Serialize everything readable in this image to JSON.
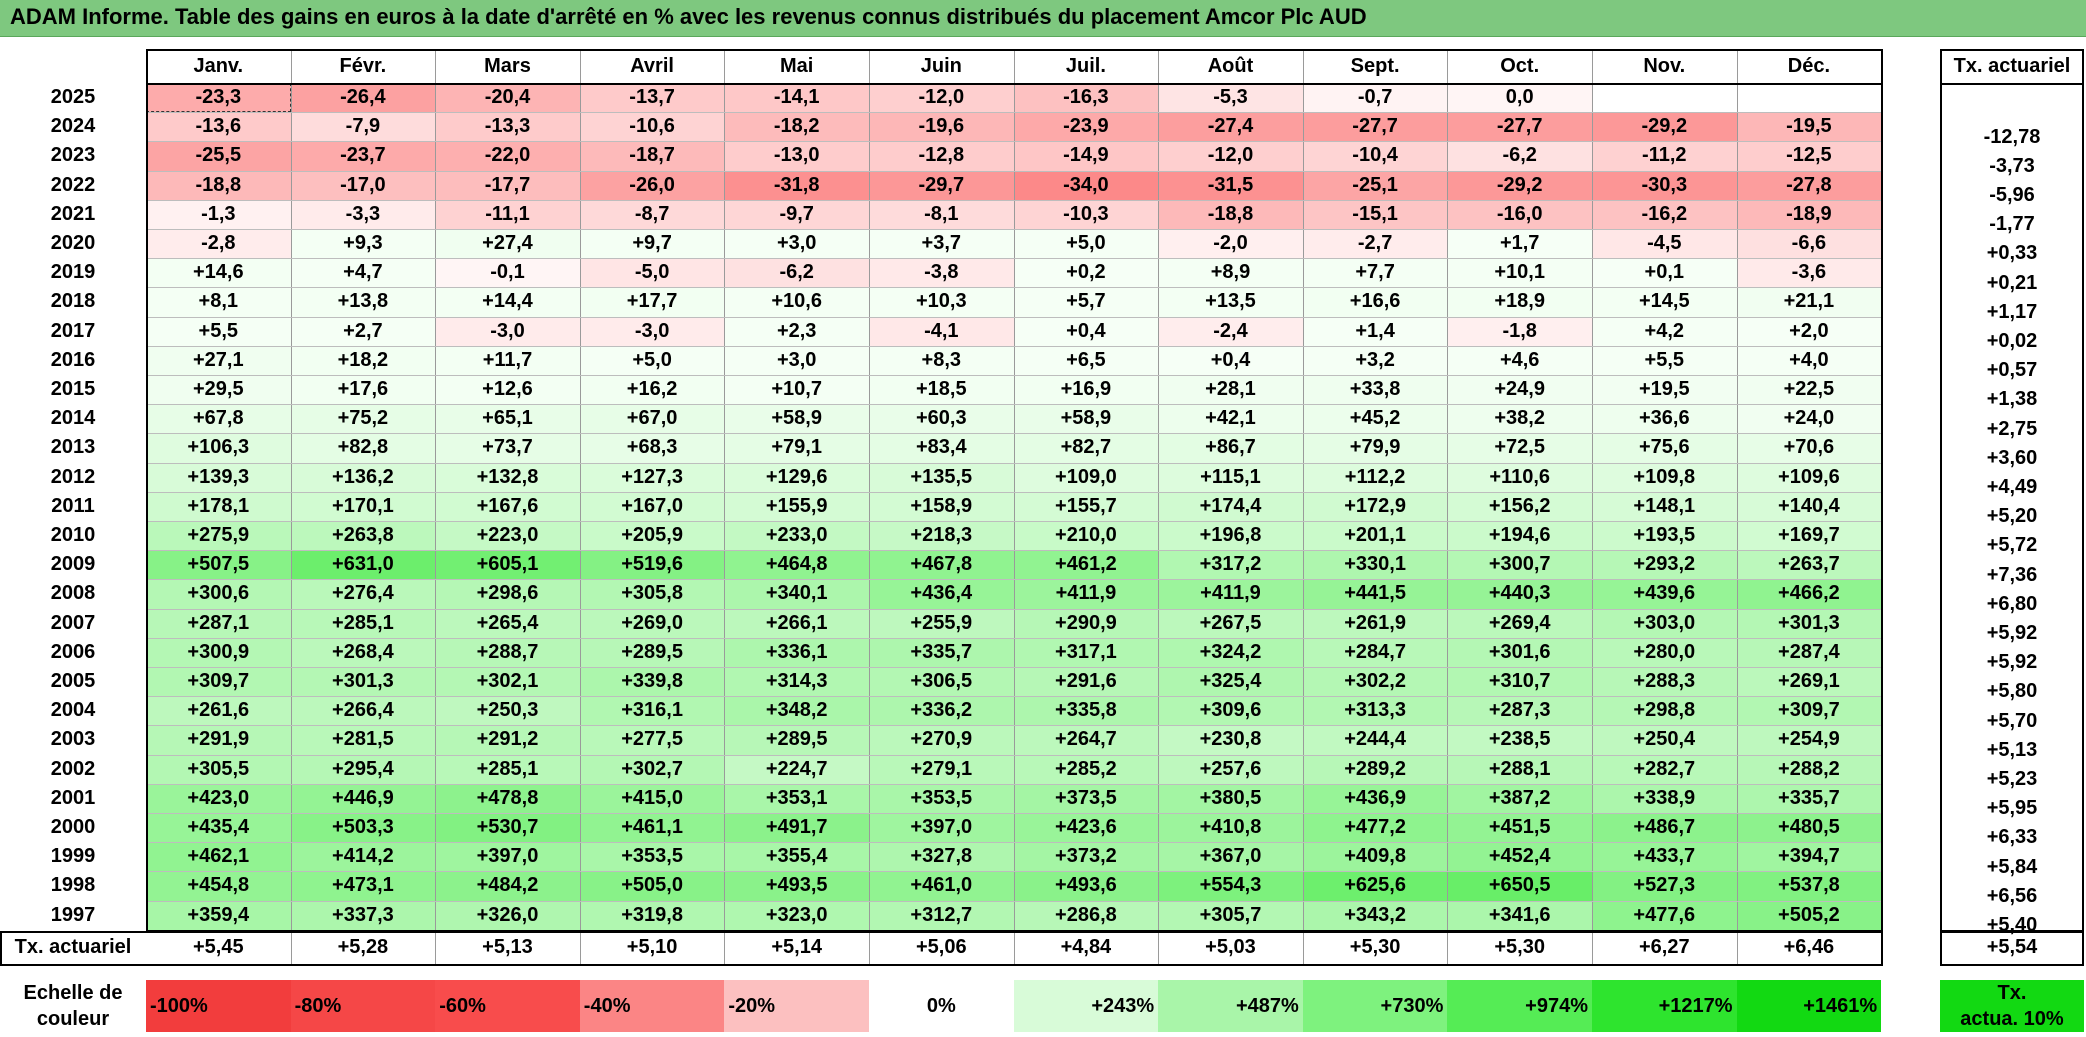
{
  "title": "ADAM Informe. Table des gains en euros à la date d'arrêté en % avec les revenus connus distribués du placement Amcor Plc AUD",
  "months": [
    "Janv.",
    "Févr.",
    "Mars",
    "Avril",
    "Mai",
    "Juin",
    "Juil.",
    "Août",
    "Sept.",
    "Oct.",
    "Nov.",
    "Déc."
  ],
  "tx_header": "Tx. actuariel",
  "footer_label": "Tx. actuariel",
  "chart_data": {
    "type": "heatmap",
    "title": "ADAM Informe. Table des gains en euros à la date d'arrêté en % avec les revenus connus distribués du placement Amcor Plc AUD",
    "columns": [
      "Janv.",
      "Févr.",
      "Mars",
      "Avril",
      "Mai",
      "Juin",
      "Juil.",
      "Août",
      "Sept.",
      "Oct.",
      "Nov.",
      "Déc."
    ],
    "rows": [
      {
        "year": "2025",
        "values": [
          "-23,3",
          "-26,4",
          "-20,4",
          "-13,7",
          "-14,1",
          "-12,0",
          "-16,3",
          "-5,3",
          "-0,7",
          "0,0",
          "",
          ""
        ],
        "tx": ""
      },
      {
        "year": "2024",
        "values": [
          "-13,6",
          "-7,9",
          "-13,3",
          "-10,6",
          "-18,2",
          "-19,6",
          "-23,9",
          "-27,4",
          "-27,7",
          "-27,7",
          "-29,2",
          "-19,5"
        ],
        "tx": "-12,78"
      },
      {
        "year": "2023",
        "values": [
          "-25,5",
          "-23,7",
          "-22,0",
          "-18,7",
          "-13,0",
          "-12,8",
          "-14,9",
          "-12,0",
          "-10,4",
          "-6,2",
          "-11,2",
          "-12,5"
        ],
        "tx": "-3,73"
      },
      {
        "year": "2022",
        "values": [
          "-18,8",
          "-17,0",
          "-17,7",
          "-26,0",
          "-31,8",
          "-29,7",
          "-34,0",
          "-31,5",
          "-25,1",
          "-29,2",
          "-30,3",
          "-27,8"
        ],
        "tx": "-5,96"
      },
      {
        "year": "2021",
        "values": [
          "-1,3",
          "-3,3",
          "-11,1",
          "-8,7",
          "-9,7",
          "-8,1",
          "-10,3",
          "-18,8",
          "-15,1",
          "-16,0",
          "-16,2",
          "-18,9"
        ],
        "tx": "-1,77"
      },
      {
        "year": "2020",
        "values": [
          "-2,8",
          "+9,3",
          "+27,4",
          "+9,7",
          "+3,0",
          "+3,7",
          "+5,0",
          "-2,0",
          "-2,7",
          "+1,7",
          "-4,5",
          "-6,6"
        ],
        "tx": "+0,33"
      },
      {
        "year": "2019",
        "values": [
          "+14,6",
          "+4,7",
          "-0,1",
          "-5,0",
          "-6,2",
          "-3,8",
          "+0,2",
          "+8,9",
          "+7,7",
          "+10,1",
          "+0,1",
          "-3,6"
        ],
        "tx": "+0,21"
      },
      {
        "year": "2018",
        "values": [
          "+8,1",
          "+13,8",
          "+14,4",
          "+17,7",
          "+10,6",
          "+10,3",
          "+5,7",
          "+13,5",
          "+16,6",
          "+18,9",
          "+14,5",
          "+21,1"
        ],
        "tx": "+1,17"
      },
      {
        "year": "2017",
        "values": [
          "+5,5",
          "+2,7",
          "-3,0",
          "-3,0",
          "+2,3",
          "-4,1",
          "+0,4",
          "-2,4",
          "+1,4",
          "-1,8",
          "+4,2",
          "+2,0"
        ],
        "tx": "+0,02"
      },
      {
        "year": "2016",
        "values": [
          "+27,1",
          "+18,2",
          "+11,7",
          "+5,0",
          "+3,0",
          "+8,3",
          "+6,5",
          "+0,4",
          "+3,2",
          "+4,6",
          "+5,5",
          "+4,0"
        ],
        "tx": "+0,57"
      },
      {
        "year": "2015",
        "values": [
          "+29,5",
          "+17,6",
          "+12,6",
          "+16,2",
          "+10,7",
          "+18,5",
          "+16,9",
          "+28,1",
          "+33,8",
          "+24,9",
          "+19,5",
          "+22,5"
        ],
        "tx": "+1,38"
      },
      {
        "year": "2014",
        "values": [
          "+67,8",
          "+75,2",
          "+65,1",
          "+67,0",
          "+58,9",
          "+60,3",
          "+58,9",
          "+42,1",
          "+45,2",
          "+38,2",
          "+36,6",
          "+24,0"
        ],
        "tx": "+2,75"
      },
      {
        "year": "2013",
        "values": [
          "+106,3",
          "+82,8",
          "+73,7",
          "+68,3",
          "+79,1",
          "+83,4",
          "+82,7",
          "+86,7",
          "+79,9",
          "+72,5",
          "+75,6",
          "+70,6"
        ],
        "tx": "+3,60"
      },
      {
        "year": "2012",
        "values": [
          "+139,3",
          "+136,2",
          "+132,8",
          "+127,3",
          "+129,6",
          "+135,5",
          "+109,0",
          "+115,1",
          "+112,2",
          "+110,6",
          "+109,8",
          "+109,6"
        ],
        "tx": "+4,49"
      },
      {
        "year": "2011",
        "values": [
          "+178,1",
          "+170,1",
          "+167,6",
          "+167,0",
          "+155,9",
          "+158,9",
          "+155,7",
          "+174,4",
          "+172,9",
          "+156,2",
          "+148,1",
          "+140,4"
        ],
        "tx": "+5,20"
      },
      {
        "year": "2010",
        "values": [
          "+275,9",
          "+263,8",
          "+223,0",
          "+205,9",
          "+233,0",
          "+218,3",
          "+210,0",
          "+196,8",
          "+201,1",
          "+194,6",
          "+193,5",
          "+169,7"
        ],
        "tx": "+5,72"
      },
      {
        "year": "2009",
        "values": [
          "+507,5",
          "+631,0",
          "+605,1",
          "+519,6",
          "+464,8",
          "+467,8",
          "+461,2",
          "+317,2",
          "+330,1",
          "+300,7",
          "+293,2",
          "+263,7"
        ],
        "tx": "+7,36"
      },
      {
        "year": "2008",
        "values": [
          "+300,6",
          "+276,4",
          "+298,6",
          "+305,8",
          "+340,1",
          "+436,4",
          "+411,9",
          "+411,9",
          "+441,5",
          "+440,3",
          "+439,6",
          "+466,2"
        ],
        "tx": "+6,80"
      },
      {
        "year": "2007",
        "values": [
          "+287,1",
          "+285,1",
          "+265,4",
          "+269,0",
          "+266,1",
          "+255,9",
          "+290,9",
          "+267,5",
          "+261,9",
          "+269,4",
          "+303,0",
          "+301,3"
        ],
        "tx": "+5,92"
      },
      {
        "year": "2006",
        "values": [
          "+300,9",
          "+268,4",
          "+288,7",
          "+289,5",
          "+336,1",
          "+335,7",
          "+317,1",
          "+324,2",
          "+284,7",
          "+301,6",
          "+280,0",
          "+287,4"
        ],
        "tx": "+5,92"
      },
      {
        "year": "2005",
        "values": [
          "+309,7",
          "+301,3",
          "+302,1",
          "+339,8",
          "+314,3",
          "+306,5",
          "+291,6",
          "+325,4",
          "+302,2",
          "+310,7",
          "+288,3",
          "+269,1"
        ],
        "tx": "+5,80"
      },
      {
        "year": "2004",
        "values": [
          "+261,6",
          "+266,4",
          "+250,3",
          "+316,1",
          "+348,2",
          "+336,2",
          "+335,8",
          "+309,6",
          "+313,3",
          "+287,3",
          "+298,8",
          "+309,7"
        ],
        "tx": "+5,70"
      },
      {
        "year": "2003",
        "values": [
          "+291,9",
          "+281,5",
          "+291,2",
          "+277,5",
          "+289,5",
          "+270,9",
          "+264,7",
          "+230,8",
          "+244,4",
          "+238,5",
          "+250,4",
          "+254,9"
        ],
        "tx": "+5,13"
      },
      {
        "year": "2002",
        "values": [
          "+305,5",
          "+295,4",
          "+285,1",
          "+302,7",
          "+224,7",
          "+279,1",
          "+285,2",
          "+257,6",
          "+289,2",
          "+288,1",
          "+282,7",
          "+288,2"
        ],
        "tx": "+5,23"
      },
      {
        "year": "2001",
        "values": [
          "+423,0",
          "+446,9",
          "+478,8",
          "+415,0",
          "+353,1",
          "+353,5",
          "+373,5",
          "+380,5",
          "+436,9",
          "+387,2",
          "+338,9",
          "+335,7"
        ],
        "tx": "+5,95"
      },
      {
        "year": "2000",
        "values": [
          "+435,4",
          "+503,3",
          "+530,7",
          "+461,1",
          "+491,7",
          "+397,0",
          "+423,6",
          "+410,8",
          "+477,2",
          "+451,5",
          "+486,7",
          "+480,5"
        ],
        "tx": "+6,33"
      },
      {
        "year": "1999",
        "values": [
          "+462,1",
          "+414,2",
          "+397,0",
          "+353,5",
          "+355,4",
          "+327,8",
          "+373,2",
          "+367,0",
          "+409,8",
          "+452,4",
          "+433,7",
          "+394,7"
        ],
        "tx": "+5,84"
      },
      {
        "year": "1998",
        "values": [
          "+454,8",
          "+473,1",
          "+484,2",
          "+505,0",
          "+493,5",
          "+461,0",
          "+493,6",
          "+554,3",
          "+625,6",
          "+650,5",
          "+527,3",
          "+537,8"
        ],
        "tx": "+6,56"
      },
      {
        "year": "1997",
        "values": [
          "+359,4",
          "+337,3",
          "+326,0",
          "+319,8",
          "+323,0",
          "+312,7",
          "+286,8",
          "+305,7",
          "+343,2",
          "+341,6",
          "+477,6",
          "+505,2"
        ],
        "tx": "+5,40"
      }
    ],
    "footer_values": [
      "+5,45",
      "+5,28",
      "+5,13",
      "+5,10",
      "+5,14",
      "+5,06",
      "+4,84",
      "+5,03",
      "+5,30",
      "+5,30",
      "+6,27",
      "+6,46"
    ],
    "footer_tx": "+5,54"
  },
  "scale": {
    "label_line1": "Echelle de",
    "label_line2": "couleur",
    "items": [
      {
        "text": "-100%",
        "color": "#f23d3d"
      },
      {
        "text": "-80%",
        "color": "#f54747"
      },
      {
        "text": "-60%",
        "color": "#f84c4c"
      },
      {
        "text": "-40%",
        "color": "#fb8585"
      },
      {
        "text": "-20%",
        "color": "#fcc0c0"
      },
      {
        "text": "0%",
        "color": "#ffffff"
      },
      {
        "text": "+243%",
        "color": "#d8fbd8"
      },
      {
        "text": "+487%",
        "color": "#a9f5a9"
      },
      {
        "text": "+730%",
        "color": "#7ef27e"
      },
      {
        "text": "+974%",
        "color": "#55ec55"
      },
      {
        "text": "+1217%",
        "color": "#2ee42e"
      },
      {
        "text": "+1461%",
        "color": "#12d912"
      }
    ],
    "tx_label_line1": "Tx.",
    "tx_label_line2": "actua. 10%",
    "tx_color": "#12d912"
  }
}
